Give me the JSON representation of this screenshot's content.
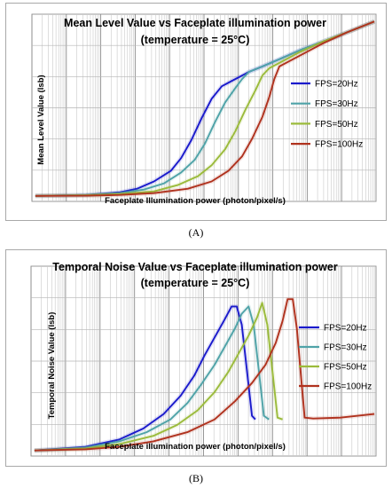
{
  "chart_data": [
    {
      "type": "line",
      "title": "Mean Level Value vs Faceplate illumination power",
      "subtitle": "(temperature = 25°C)",
      "xlabel": "Faceplate Illumination power (photon/pixel/s)",
      "ylabel": "Mean Level Value (lsb)",
      "panel_label": "(A)",
      "xscale": "log",
      "xlim": [
        0,
        10
      ],
      "ylim": [
        0,
        100
      ],
      "grid": true,
      "legend": "right",
      "series": [
        {
          "name": "FPS=20Hz",
          "color": "#1a1acc",
          "x": [
            0.0,
            1.5,
            2.5,
            3.0,
            3.5,
            4.0,
            4.3,
            4.6,
            4.9,
            5.2,
            5.5,
            5.8,
            6.0,
            6.3,
            6.7,
            7.2,
            7.8,
            8.5,
            9.2,
            10.0
          ],
          "y": [
            1,
            1.5,
            3,
            5,
            9,
            15,
            22,
            32,
            44,
            55,
            62,
            65,
            67,
            70,
            73,
            77,
            82,
            87,
            92,
            98
          ]
        },
        {
          "name": "FPS=30Hz",
          "color": "#4fa3a8",
          "x": [
            0.0,
            1.5,
            2.5,
            3.2,
            3.8,
            4.3,
            4.7,
            5.0,
            5.3,
            5.6,
            5.9,
            6.1,
            6.3,
            6.7,
            7.2,
            7.8,
            8.5,
            9.2,
            10.0
          ],
          "y": [
            1,
            1.5,
            2.5,
            4.5,
            8,
            14,
            21,
            30,
            42,
            53,
            61,
            66,
            70,
            73,
            77,
            82,
            87,
            92,
            98
          ]
        },
        {
          "name": "FPS=50Hz",
          "color": "#9bbb3b",
          "x": [
            0.0,
            1.5,
            2.5,
            3.5,
            4.2,
            4.8,
            5.2,
            5.6,
            5.9,
            6.2,
            6.5,
            6.7,
            6.9,
            7.2,
            7.8,
            8.5,
            9.2,
            10.0
          ],
          "y": [
            1,
            1.3,
            2,
            3.5,
            7,
            12,
            18,
            27,
            37,
            49,
            60,
            68,
            72,
            75,
            81,
            87,
            92,
            98
          ]
        },
        {
          "name": "FPS=100Hz",
          "color": "#b0321e",
          "x": [
            0.0,
            1.5,
            2.5,
            3.5,
            4.5,
            5.2,
            5.7,
            6.1,
            6.4,
            6.7,
            6.9,
            7.05,
            7.2,
            7.5,
            8.0,
            8.5,
            9.2,
            10.0
          ],
          "y": [
            1,
            1.1,
            1.5,
            2.5,
            5,
            9,
            15,
            23,
            33,
            45,
            56,
            66,
            73,
            76,
            81,
            86,
            92,
            98
          ]
        }
      ]
    },
    {
      "type": "line",
      "title": "Temporal Noise Value vs Faceplate illumination power",
      "subtitle": "(temperature = 25°C)",
      "xlabel": "Faceplate illumination power (photon/pixel/s)",
      "ylabel": "Temporal Noise Value (lsb)",
      "panel_label": "(B)",
      "xscale": "log",
      "xlim": [
        0,
        10
      ],
      "ylim": [
        0,
        100
      ],
      "grid": true,
      "legend": "right",
      "series": [
        {
          "name": "FPS=20Hz",
          "color": "#1a1acc",
          "x": [
            0.0,
            1.5,
            2.5,
            3.2,
            3.8,
            4.3,
            4.7,
            5.0,
            5.3,
            5.6,
            5.8,
            5.95,
            6.1,
            6.25,
            6.4,
            6.5
          ],
          "y": [
            1,
            3,
            7,
            13,
            21,
            31,
            42,
            53,
            63,
            73,
            80,
            80,
            70,
            45,
            20,
            18
          ]
        },
        {
          "name": "FPS=30Hz",
          "color": "#4fa3a8",
          "x": [
            0.0,
            1.5,
            2.5,
            3.3,
            4.0,
            4.5,
            4.9,
            5.3,
            5.6,
            5.9,
            6.1,
            6.3,
            6.45,
            6.6,
            6.75,
            6.9
          ],
          "y": [
            1,
            2.5,
            6,
            11,
            18,
            27,
            37,
            48,
            58,
            68,
            76,
            80,
            70,
            45,
            20,
            18
          ]
        },
        {
          "name": "FPS=50Hz",
          "color": "#9bbb3b",
          "x": [
            0.0,
            1.5,
            2.5,
            3.5,
            4.2,
            4.8,
            5.3,
            5.7,
            6.0,
            6.3,
            6.55,
            6.7,
            6.85,
            7.0,
            7.15,
            7.3
          ],
          "y": [
            1,
            2,
            4.5,
            9,
            15,
            23,
            33,
            44,
            54,
            64,
            74,
            82,
            70,
            45,
            19,
            18
          ]
        },
        {
          "name": "FPS=100Hz",
          "color": "#b0321e",
          "x": [
            0.0,
            1.5,
            2.5,
            3.5,
            4.5,
            5.3,
            5.9,
            6.4,
            6.8,
            7.1,
            7.3,
            7.45,
            7.6,
            7.72,
            7.85,
            7.95,
            8.2,
            9.0,
            10.0
          ],
          "y": [
            1,
            1.6,
            3,
            6,
            11,
            18,
            28,
            38,
            48,
            60,
            72,
            84,
            84,
            68,
            40,
            19,
            18.5,
            19,
            21
          ]
        }
      ]
    }
  ]
}
